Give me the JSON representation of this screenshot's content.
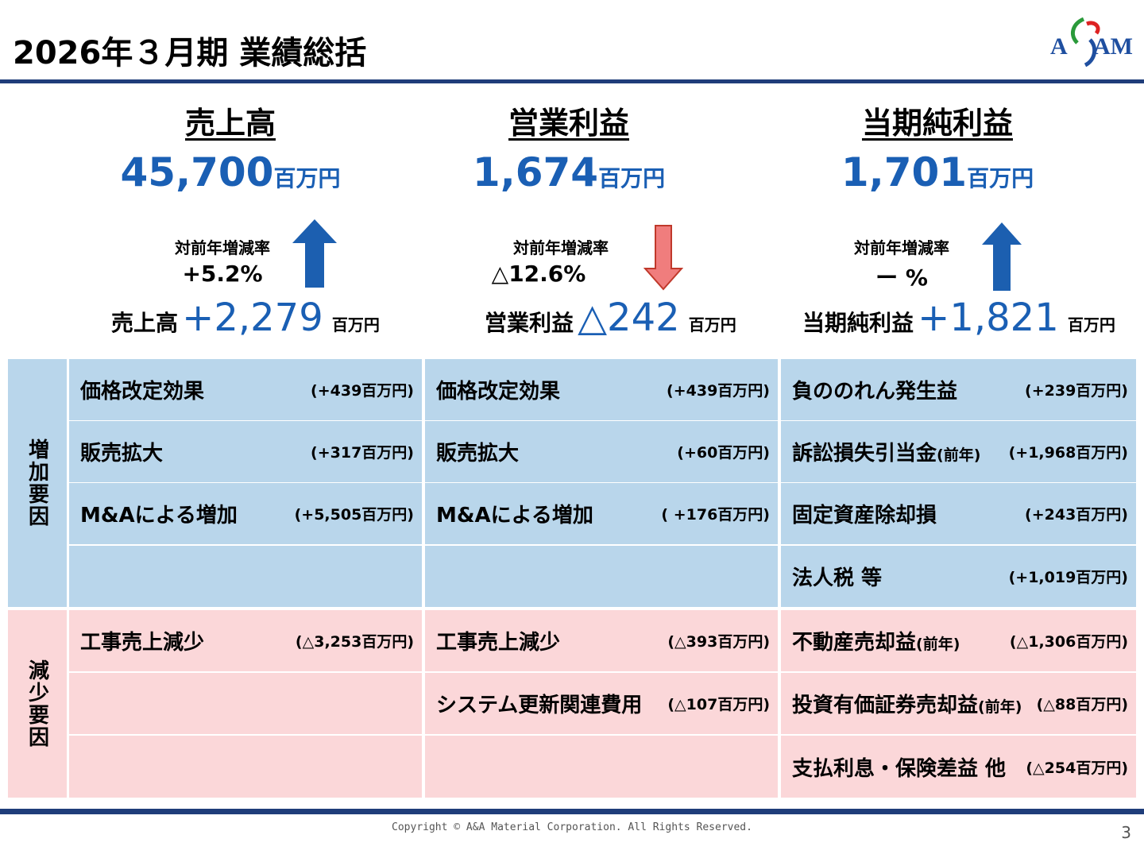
{
  "header": {
    "title": "2026年３月期  業績総括",
    "logo_text": "AAM"
  },
  "colors": {
    "accent_blue": "#1a5fb4",
    "navy_rule": "#1f3d7a",
    "up_arrow": "#1c5fb0",
    "down_arrow": "#f07d7d",
    "increase_bg": "#b9d6eb",
    "decrease_bg": "#fbd7d9"
  },
  "columns": [
    {
      "heading": "売上高",
      "value": "45,700",
      "unit": "百万円",
      "rate_label": "対前年増減率",
      "rate": "+5.2%",
      "arrow": "up-arrow-icon",
      "delta_label": "売上高",
      "delta_value": "+2,279",
      "delta_unit": "百万円"
    },
    {
      "heading": "営業利益",
      "value": "1,674",
      "unit": "百万円",
      "rate_label": "対前年増減率",
      "rate": "△12.6%",
      "arrow": "down-arrow-icon",
      "delta_label": "営業利益",
      "delta_value": "△242",
      "delta_unit": "百万円"
    },
    {
      "heading": "当期純利益",
      "value": "1,701",
      "unit": "百万円",
      "rate_label": "対前年増減率",
      "rate": "ー %",
      "arrow": "up-arrow-icon",
      "delta_label": "当期純利益",
      "delta_value": "+1,821",
      "delta_unit": "百万円"
    }
  ],
  "factors": {
    "increase_label": "増加要因",
    "decrease_label": "減少要因",
    "increase": [
      [
        {
          "name": "価格改定効果",
          "amount": "(+439百万円)"
        },
        {
          "name": "価格改定効果",
          "amount": "(+439百万円)"
        },
        {
          "name": "負ののれん発生益",
          "amount": "(+239百万円)"
        }
      ],
      [
        {
          "name": "販売拡大",
          "amount": "(+317百万円)"
        },
        {
          "name": "販売拡大",
          "amount": "(+60百万円)"
        },
        {
          "name": "訴訟損失引当金",
          "suffix": "(前年)",
          "amount": "(+1,968百万円)"
        }
      ],
      [
        {
          "name": "M&Aによる増加",
          "amount": "(+5,505百万円)"
        },
        {
          "name": "M&Aによる増加",
          "amount": "( +176百万円)"
        },
        {
          "name": "固定資産除却損",
          "amount": "(+243百万円)"
        }
      ],
      [
        {
          "name": "",
          "amount": ""
        },
        {
          "name": "",
          "amount": ""
        },
        {
          "name": "法人税 等",
          "amount": "(+1,019百万円)"
        }
      ]
    ],
    "decrease": [
      [
        {
          "name": "工事売上減少",
          "amount": "(△3,253百万円)"
        },
        {
          "name": "工事売上減少",
          "amount": "(△393百万円)"
        },
        {
          "name": "不動産売却益",
          "suffix": "(前年)",
          "amount": "(△1,306百万円)"
        }
      ],
      [
        {
          "name": "",
          "amount": ""
        },
        {
          "name": "システム更新関連費用",
          "amount": "(△107百万円)"
        },
        {
          "name": "投資有価証券売却益",
          "suffix": "(前年)",
          "amount": "(△88百万円)"
        }
      ],
      [
        {
          "name": "",
          "amount": ""
        },
        {
          "name": "",
          "amount": ""
        },
        {
          "name": "支払利息・保険差益 他",
          "amount": "(△254百万円)"
        }
      ]
    ]
  },
  "footer": {
    "copyright": "Copyright © A&A Material Corporation. All Rights Reserved.",
    "page": "3"
  }
}
